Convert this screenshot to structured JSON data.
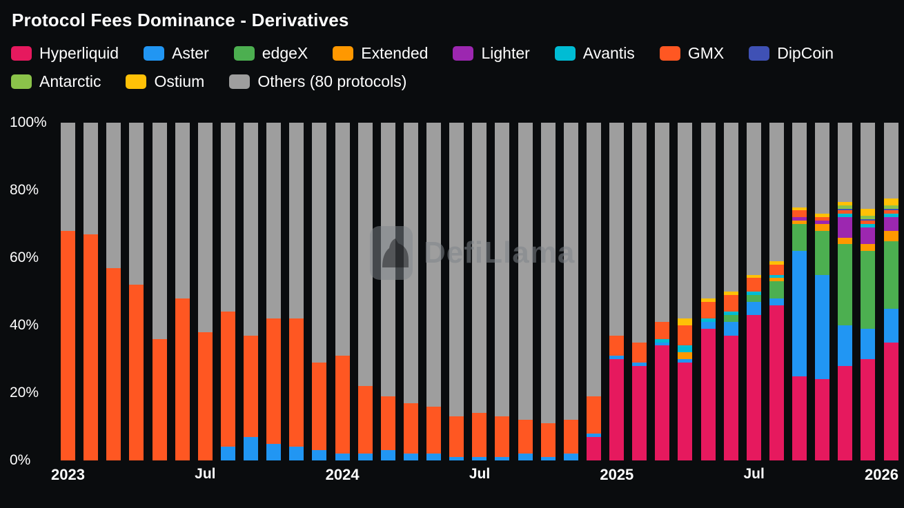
{
  "title": "Protocol Fees Dominance - Derivatives",
  "watermark": "DefiLlama",
  "colors": {
    "background": "#0a0c0e",
    "text": "#ffffff"
  },
  "chart_data": {
    "type": "bar",
    "stacked": true,
    "normalized": "percent",
    "title": "Protocol Fees Dominance - Derivatives",
    "xlabel": "",
    "ylabel": "",
    "ylim": [
      0,
      100
    ],
    "grid": false,
    "legend_position": "top",
    "y_ticks": [
      "0%",
      "20%",
      "40%",
      "60%",
      "80%",
      "100%"
    ],
    "x_ticks": [
      {
        "index": 0,
        "label": "2023"
      },
      {
        "index": 6,
        "label": "Jul"
      },
      {
        "index": 12,
        "label": "2024"
      },
      {
        "index": 18,
        "label": "Jul"
      },
      {
        "index": 24,
        "label": "2025"
      },
      {
        "index": 30,
        "label": "Jul"
      },
      {
        "index": 36,
        "label": "2026"
      }
    ],
    "x": [
      "2023-01",
      "2023-02",
      "2023-03",
      "2023-04",
      "2023-05",
      "2023-06",
      "2023-07",
      "2023-08",
      "2023-09",
      "2023-10",
      "2023-11",
      "2023-12",
      "2024-01",
      "2024-02",
      "2024-03",
      "2024-04",
      "2024-05",
      "2024-06",
      "2024-07",
      "2024-08",
      "2024-09",
      "2024-10",
      "2024-11",
      "2024-12",
      "2025-01",
      "2025-02",
      "2025-03",
      "2025-04",
      "2025-05",
      "2025-06",
      "2025-07",
      "2025-08",
      "2025-09",
      "2025-10",
      "2025-11",
      "2025-12",
      "2026-01"
    ],
    "series": [
      {
        "name": "Hyperliquid",
        "color": "#e6195e",
        "values": [
          0,
          0,
          0,
          0,
          0,
          0,
          0,
          0,
          0,
          0,
          0,
          0,
          0,
          0,
          0,
          0,
          0,
          0,
          0,
          0,
          0,
          0,
          0,
          7,
          30,
          28,
          34,
          29,
          39,
          37,
          43,
          46,
          25,
          24,
          28,
          30,
          35
        ]
      },
      {
        "name": "Aster",
        "color": "#2196f3",
        "values": [
          0,
          0,
          0,
          0,
          0,
          0,
          0,
          4,
          7,
          5,
          4,
          3,
          2,
          2,
          3,
          2,
          2,
          1,
          1,
          1,
          2,
          1,
          2,
          1,
          1,
          1,
          1,
          1,
          2,
          4,
          4,
          2,
          37,
          31,
          12,
          9,
          10
        ]
      },
      {
        "name": "edgeX",
        "color": "#4caf50",
        "values": [
          0,
          0,
          0,
          0,
          0,
          0,
          0,
          0,
          0,
          0,
          0,
          0,
          0,
          0,
          0,
          0,
          0,
          0,
          0,
          0,
          0,
          0,
          0,
          0,
          0,
          0,
          0,
          0,
          0,
          2,
          2,
          5,
          8,
          13,
          24,
          23,
          20
        ]
      },
      {
        "name": "Extended",
        "color": "#ff9800",
        "values": [
          0,
          0,
          0,
          0,
          0,
          0,
          0,
          0,
          0,
          0,
          0,
          0,
          0,
          0,
          0,
          0,
          0,
          0,
          0,
          0,
          0,
          0,
          0,
          0,
          0,
          0,
          0,
          2,
          0,
          0,
          0,
          1,
          1,
          2,
          2,
          2,
          3
        ]
      },
      {
        "name": "Lighter",
        "color": "#9c27b0",
        "values": [
          0,
          0,
          0,
          0,
          0,
          0,
          0,
          0,
          0,
          0,
          0,
          0,
          0,
          0,
          0,
          0,
          0,
          0,
          0,
          0,
          0,
          0,
          0,
          0,
          0,
          0,
          0,
          0,
          0,
          0,
          0,
          0,
          1,
          1,
          6,
          5,
          4
        ]
      },
      {
        "name": "Avantis",
        "color": "#00bcd4",
        "values": [
          0,
          0,
          0,
          0,
          0,
          0,
          0,
          0,
          0,
          0,
          0,
          0,
          0,
          0,
          0,
          0,
          0,
          0,
          0,
          0,
          0,
          0,
          0,
          0,
          0,
          0,
          1,
          2,
          1,
          1,
          1,
          1,
          0,
          0,
          1,
          1,
          1
        ]
      },
      {
        "name": "GMX",
        "color": "#ff5722",
        "values": [
          68,
          67,
          57,
          52,
          36,
          48,
          38,
          40,
          30,
          37,
          38,
          26,
          29,
          20,
          16,
          15,
          14,
          12,
          13,
          12,
          10,
          10,
          10,
          11,
          6,
          6,
          5,
          6,
          5,
          5,
          4,
          3,
          2,
          1,
          1,
          1,
          1
        ]
      },
      {
        "name": "DipCoin",
        "color": "#3f51b5",
        "values": [
          0,
          0,
          0,
          0,
          0,
          0,
          0,
          0,
          0,
          0,
          0,
          0,
          0,
          0,
          0,
          0,
          0,
          0,
          0,
          0,
          0,
          0,
          0,
          0,
          0,
          0,
          0,
          0,
          0,
          0,
          0,
          0,
          0,
          0,
          0.5,
          0.5,
          0.5
        ]
      },
      {
        "name": "Antarctic",
        "color": "#8bc34a",
        "values": [
          0,
          0,
          0,
          0,
          0,
          0,
          0,
          0,
          0,
          0,
          0,
          0,
          0,
          0,
          0,
          0,
          0,
          0,
          0,
          0,
          0,
          0,
          0,
          0,
          0,
          0,
          0,
          0,
          0,
          0,
          0,
          0,
          0,
          0,
          1,
          1,
          1
        ]
      },
      {
        "name": "Ostium",
        "color": "#ffc107",
        "values": [
          0,
          0,
          0,
          0,
          0,
          0,
          0,
          0,
          0,
          0,
          0,
          0,
          0,
          0,
          0,
          0,
          0,
          0,
          0,
          0,
          0,
          0,
          0,
          0,
          0,
          0,
          0,
          2,
          1,
          1,
          1,
          1,
          1,
          1,
          1,
          2,
          2
        ]
      },
      {
        "name": "Others (80 protocols)",
        "color": "#9e9e9e",
        "values": [
          32,
          33,
          43,
          48,
          64,
          52,
          62,
          56,
          63,
          58,
          58,
          71,
          69,
          78,
          81,
          83,
          84,
          87,
          86,
          87,
          88,
          89,
          88,
          81,
          63,
          65,
          59,
          58,
          52,
          50,
          45,
          41,
          25,
          27,
          23.5,
          25.5,
          22.5
        ]
      }
    ]
  }
}
